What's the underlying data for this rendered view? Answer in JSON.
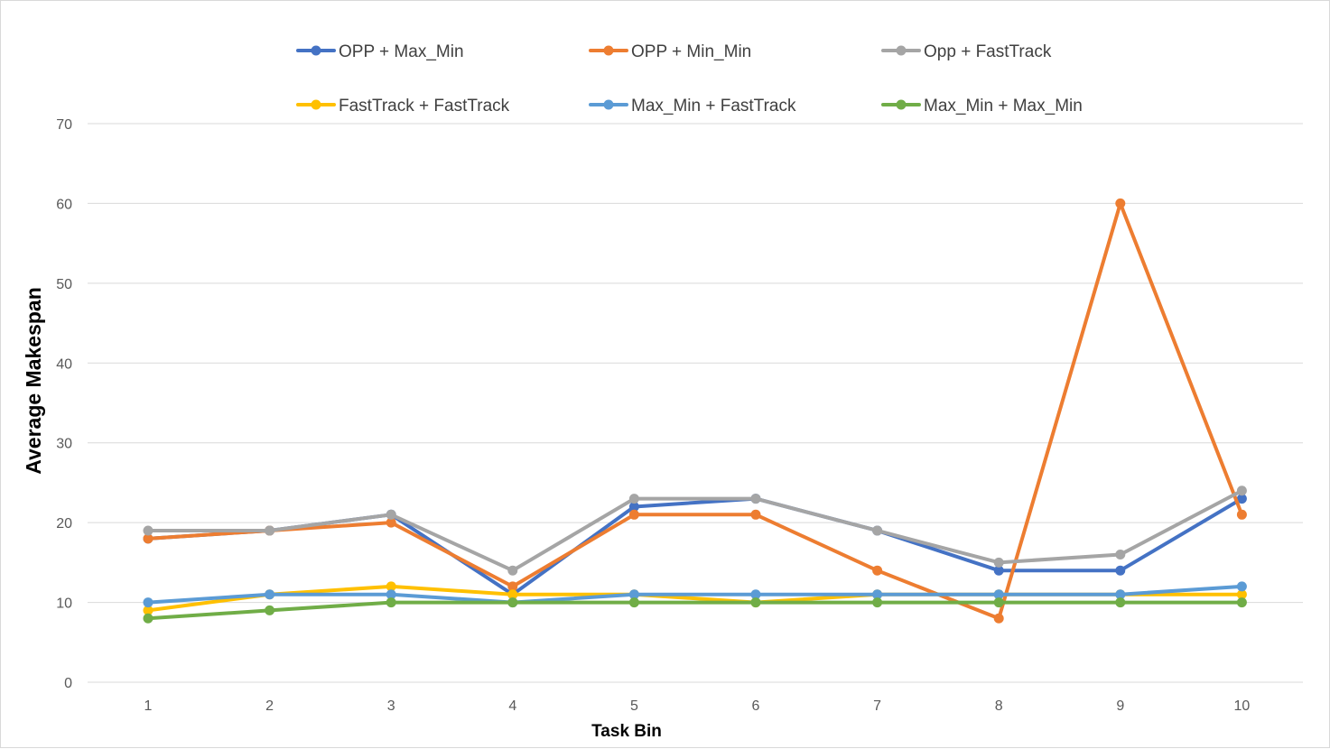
{
  "chart_data": {
    "type": "line",
    "title": "",
    "xlabel": "Task Bin",
    "ylabel": "Average Makespan",
    "categories": [
      "1",
      "2",
      "3",
      "4",
      "5",
      "6",
      "7",
      "8",
      "9",
      "10"
    ],
    "ylim": [
      0,
      70
    ],
    "yticks": [
      0,
      10,
      20,
      30,
      40,
      50,
      60,
      70
    ],
    "grid": "horizontal",
    "legend_position": "top",
    "series": [
      {
        "name": "OPP + Max_Min",
        "color": "#4472C4",
        "values": [
          18,
          19,
          21,
          11,
          22,
          23,
          19,
          14,
          14,
          23
        ]
      },
      {
        "name": "OPP + Min_Min",
        "color": "#ED7D31",
        "values": [
          18,
          19,
          20,
          12,
          21,
          21,
          14,
          8,
          60,
          21
        ]
      },
      {
        "name": "Opp + FastTrack",
        "color": "#A5A5A5",
        "values": [
          19,
          19,
          21,
          14,
          23,
          23,
          19,
          15,
          16,
          24
        ]
      },
      {
        "name": "FastTrack + FastTrack",
        "color": "#FFC000",
        "values": [
          9,
          11,
          12,
          11,
          11,
          10,
          11,
          11,
          11,
          11
        ]
      },
      {
        "name": "Max_Min + FastTrack",
        "color": "#5B9BD5",
        "values": [
          10,
          11,
          11,
          10,
          11,
          11,
          11,
          11,
          11,
          12
        ]
      },
      {
        "name": "Max_Min + Max_Min",
        "color": "#70AD47",
        "values": [
          8,
          9,
          10,
          10,
          10,
          10,
          10,
          10,
          10,
          10
        ]
      }
    ]
  }
}
